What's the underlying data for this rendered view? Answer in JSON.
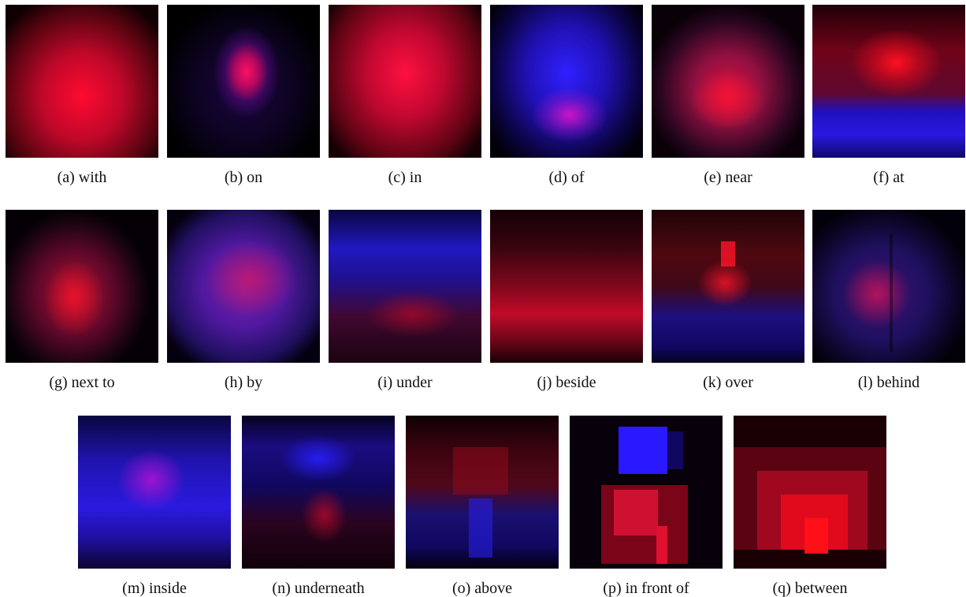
{
  "panels": [
    {
      "caption": "(a) with"
    },
    {
      "caption": "(b) on"
    },
    {
      "caption": "(c) in"
    },
    {
      "caption": "(d) of"
    },
    {
      "caption": "(e) near"
    },
    {
      "caption": "(f) at"
    },
    {
      "caption": "(g) next to"
    },
    {
      "caption": "(h) by"
    },
    {
      "caption": "(i) under"
    },
    {
      "caption": "(j) beside"
    },
    {
      "caption": "(k) over"
    },
    {
      "caption": "(l) behind"
    },
    {
      "caption": "(m) inside"
    },
    {
      "caption": "(n) underneath"
    },
    {
      "caption": "(o) above"
    },
    {
      "caption": "(p) in front of"
    },
    {
      "caption": "(q) between"
    }
  ],
  "colors": {
    "subject": "#ff1030",
    "object": "#2a1cff",
    "background": "#000000"
  }
}
